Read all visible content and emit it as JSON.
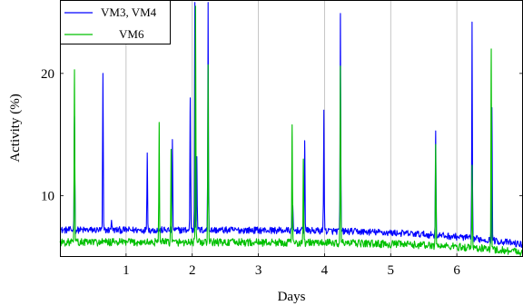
{
  "chart_data": {
    "type": "line",
    "xlabel": "Days",
    "ylabel": "Activity (%)",
    "xlim": [
      0,
      7
    ],
    "ylim": [
      5,
      26
    ],
    "x_ticks": [
      1,
      2,
      3,
      4,
      5,
      6
    ],
    "y_ticks": [
      10,
      20
    ],
    "x_tick_labels": [
      "1",
      "2",
      "3",
      "4",
      "5",
      "6"
    ],
    "y_tick_labels": [
      "10",
      "20"
    ],
    "grid": "vertical",
    "legend_position": "top-left",
    "baseline": {
      "VM3, VM4": [
        7.2,
        6.0
      ],
      "VM6": [
        6.2,
        5.4
      ]
    },
    "series": [
      {
        "name": "VM3, VM4",
        "color": "#0000ff",
        "peaks": [
          {
            "x": 0.22,
            "y": 16.5
          },
          {
            "x": 0.65,
            "y": 20.0
          },
          {
            "x": 0.78,
            "y": 8.0
          },
          {
            "x": 1.32,
            "y": 13.5
          },
          {
            "x": 1.7,
            "y": 14.6
          },
          {
            "x": 1.97,
            "y": 18.0
          },
          {
            "x": 2.04,
            "y": 25.8
          },
          {
            "x": 2.07,
            "y": 13.2
          },
          {
            "x": 2.24,
            "y": 25.8
          },
          {
            "x": 3.52,
            "y": 9.2
          },
          {
            "x": 3.7,
            "y": 14.5
          },
          {
            "x": 3.99,
            "y": 17.0
          },
          {
            "x": 4.24,
            "y": 24.9
          },
          {
            "x": 5.68,
            "y": 15.3
          },
          {
            "x": 6.23,
            "y": 24.2
          },
          {
            "x": 6.53,
            "y": 17.2
          }
        ]
      },
      {
        "name": "VM6",
        "color": "#00c000",
        "peaks": [
          {
            "x": 0.22,
            "y": 20.3
          },
          {
            "x": 1.5,
            "y": 16.0
          },
          {
            "x": 1.68,
            "y": 13.8
          },
          {
            "x": 2.05,
            "y": 25.5
          },
          {
            "x": 2.24,
            "y": 20.7
          },
          {
            "x": 3.51,
            "y": 15.8
          },
          {
            "x": 3.68,
            "y": 13.0
          },
          {
            "x": 4.24,
            "y": 20.6
          },
          {
            "x": 5.68,
            "y": 14.2
          },
          {
            "x": 6.23,
            "y": 12.5
          },
          {
            "x": 6.52,
            "y": 22.0
          }
        ]
      }
    ]
  }
}
